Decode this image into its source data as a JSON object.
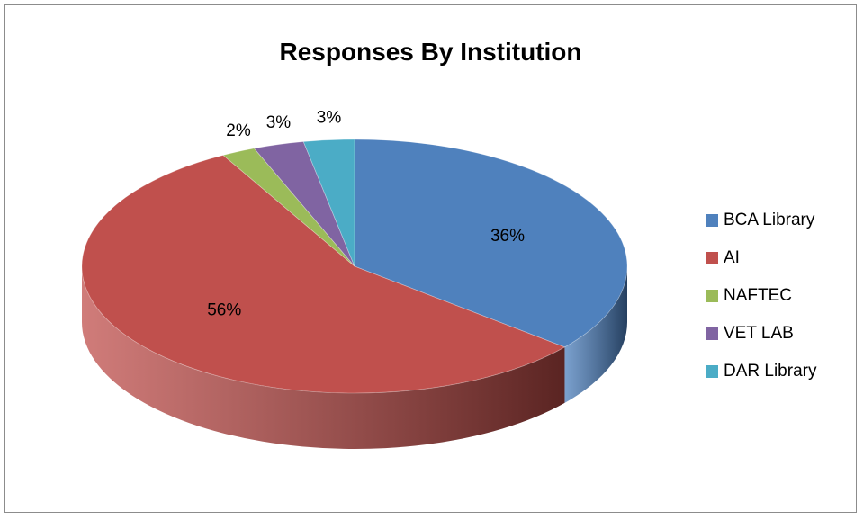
{
  "chart_data": {
    "type": "pie",
    "title": "Responses By Institution",
    "slices": [
      {
        "label": "BCA Library",
        "value": 36,
        "data_label": "36%",
        "color": "#4F81BD",
        "dark": "#253f5f"
      },
      {
        "label": "AI",
        "value": 56,
        "data_label": "56%",
        "color": "#C0504D",
        "dark": "#5a2422"
      },
      {
        "label": "NAFTEC",
        "value": 2,
        "data_label": "2%",
        "color": "#9BBB59",
        "dark": "#4d5e2c"
      },
      {
        "label": "VET LAB",
        "value": 3,
        "data_label": "3%",
        "color": "#8064A2",
        "dark": "#403251"
      },
      {
        "label": "DAR Library",
        "value": 3,
        "data_label": "3%",
        "color": "#4BACC6",
        "dark": "#255663"
      }
    ],
    "legend_position": "right",
    "three_d": true
  }
}
